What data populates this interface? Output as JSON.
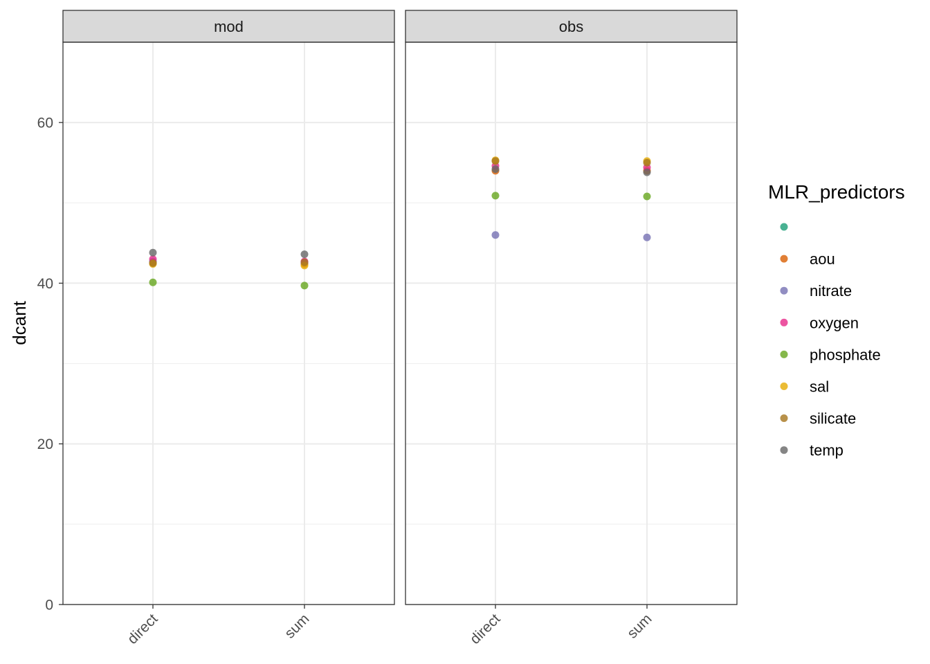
{
  "chart_data": {
    "type": "scatter",
    "ylabel": "dcant",
    "ylim": [
      0,
      70
    ],
    "yticks": [
      0,
      20,
      40,
      60
    ],
    "categories": [
      "direct",
      "sum"
    ],
    "facets": [
      "mod",
      "obs"
    ],
    "grid": true,
    "legend": {
      "title": "MLR_predictors",
      "placement": "right",
      "entries": [
        "",
        "aou",
        "nitrate",
        "oxygen",
        "phosphate",
        "sal",
        "silicate",
        "temp"
      ]
    },
    "colors": {
      "": "#1B9E77",
      "aou": "#D95F02",
      "nitrate": "#7570B3",
      "oxygen": "#E7298A",
      "phosphate": "#66A61E",
      "sal": "#E6AB02",
      "silicate": "#A6761D",
      "temp": "#666666"
    },
    "series": [
      {
        "name": "aou",
        "facet": "mod",
        "values": [
          42.6,
          42.4
        ]
      },
      {
        "name": "nitrate",
        "facet": "mod",
        "values": [
          42.7,
          42.6
        ]
      },
      {
        "name": "oxygen",
        "facet": "mod",
        "values": [
          43.0,
          42.7
        ]
      },
      {
        "name": "phosphate",
        "facet": "mod",
        "values": [
          40.1,
          39.7
        ]
      },
      {
        "name": "sal",
        "facet": "mod",
        "values": [
          42.4,
          42.2
        ]
      },
      {
        "name": "silicate",
        "facet": "mod",
        "values": [
          42.5,
          42.6
        ]
      },
      {
        "name": "temp",
        "facet": "mod",
        "values": [
          43.8,
          43.6
        ]
      },
      {
        "name": "aou",
        "facet": "obs",
        "values": [
          54.0,
          54.0
        ]
      },
      {
        "name": "nitrate",
        "facet": "obs",
        "values": [
          46.0,
          45.7
        ]
      },
      {
        "name": "oxygen",
        "facet": "obs",
        "values": [
          54.6,
          54.4
        ]
      },
      {
        "name": "phosphate",
        "facet": "obs",
        "values": [
          50.9,
          50.8
        ]
      },
      {
        "name": "sal",
        "facet": "obs",
        "values": [
          55.3,
          55.2
        ]
      },
      {
        "name": "silicate",
        "facet": "obs",
        "values": [
          55.2,
          55.0
        ]
      },
      {
        "name": "temp",
        "facet": "obs",
        "values": [
          54.2,
          53.8
        ]
      }
    ]
  }
}
